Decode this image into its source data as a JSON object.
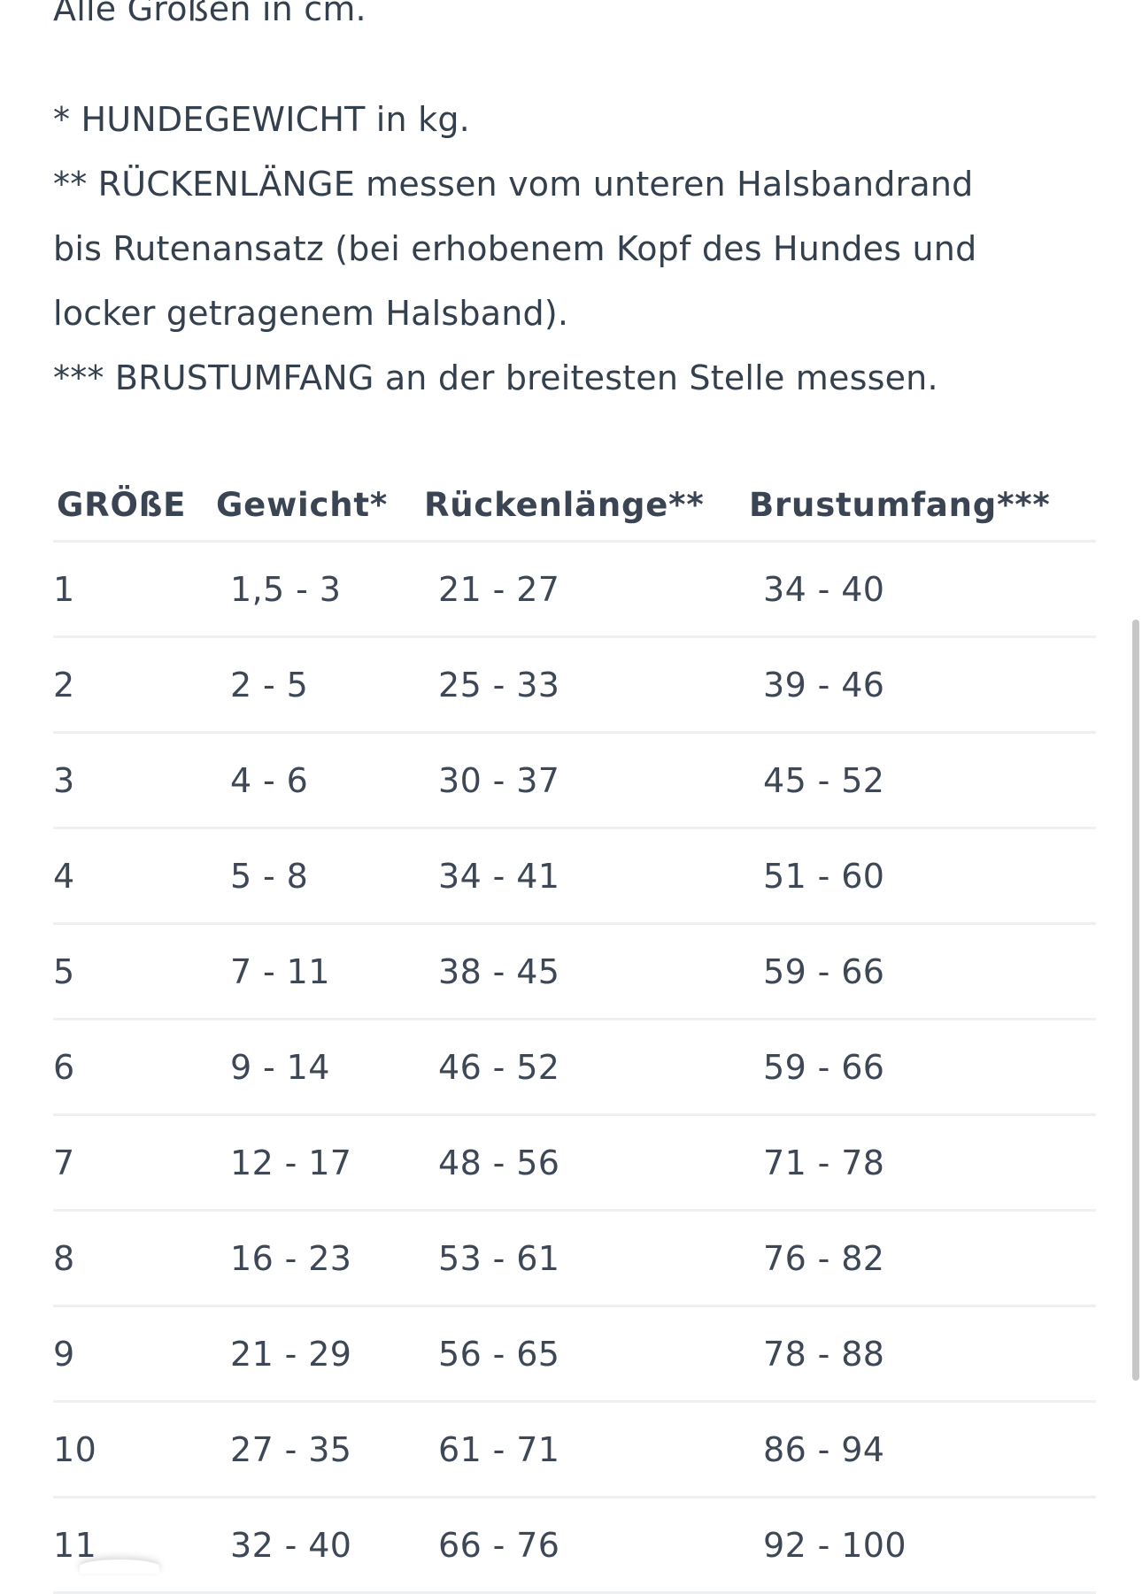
{
  "intro": {
    "units_note": "Alle Größen in cm.",
    "note_weight": "* HUNDEGEWICHT in kg.",
    "note_back_line1": "** RÜCKENLÄNGE messen vom unteren Halsbandrand",
    "note_back_line2": "bis Rutenansatz (bei erhobenem Kopf des Hundes und",
    "note_back_line3": "locker getragenem Halsband).",
    "note_chest": "*** BRUSTUMFANG an der breitesten Stelle messen."
  },
  "table": {
    "headers": [
      "GRÖßE",
      "Gewicht*",
      "Rückenlänge**",
      "Brustumfang***"
    ],
    "rows": [
      [
        "1",
        "1,5 - 3",
        "21 - 27",
        "34 - 40"
      ],
      [
        "2",
        "2 - 5",
        "25 - 33",
        "39 - 46"
      ],
      [
        "3",
        "4 - 6",
        "30 - 37",
        "45 - 52"
      ],
      [
        "4",
        "5 - 8",
        "34 - 41",
        "51 - 60"
      ],
      [
        "5",
        "7 - 11",
        "38 - 45",
        "59 - 66"
      ],
      [
        "6",
        "9 - 14",
        "46 - 52",
        "59 - 66"
      ],
      [
        "7",
        "12 - 17",
        "48 - 56",
        "71 - 78"
      ],
      [
        "8",
        "16 - 23",
        "53 - 61",
        "76 - 82"
      ],
      [
        "9",
        "21 - 29",
        "56 - 65",
        "78 - 88"
      ],
      [
        "10",
        "27 - 35",
        "61 - 71",
        "86 - 94"
      ],
      [
        "11",
        "32 - 40",
        "66 - 76",
        "92 - 100"
      ]
    ]
  }
}
